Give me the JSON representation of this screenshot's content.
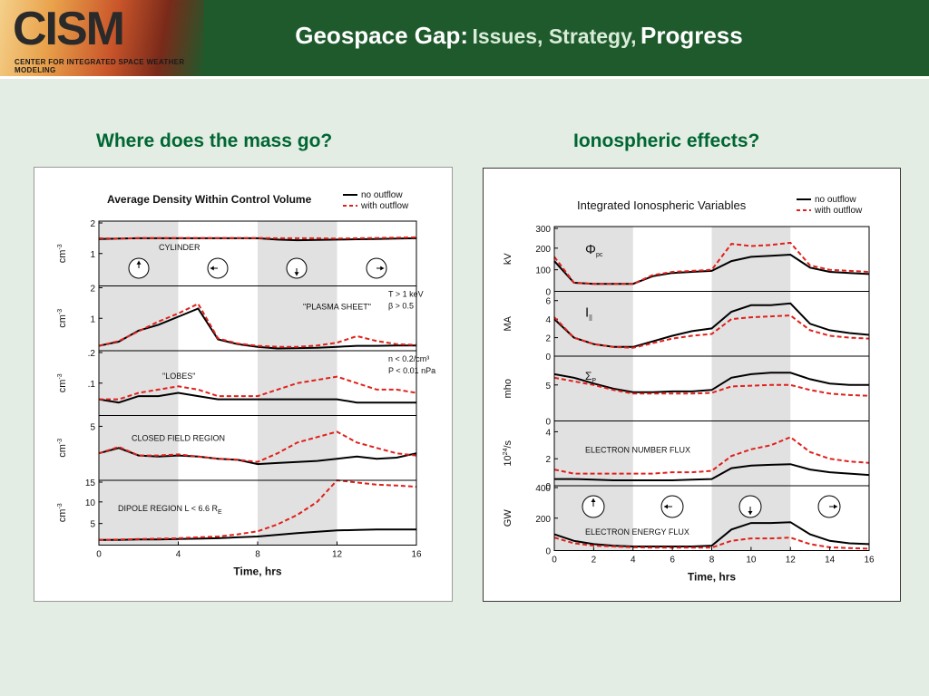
{
  "header": {
    "logo": "CISM",
    "logo_sub": "CENTER FOR INTEGRATED SPACE WEATHER MODELING",
    "title_main": "Geospace Gap:",
    "title_mid": "Issues, Strategy,",
    "title_end": "Progress"
  },
  "questions": {
    "left": "Where does the mass go?",
    "right": "Ionospheric effects?"
  },
  "colors": {
    "no_outflow": "#000000",
    "with_outflow": "#e0201b",
    "shade": "#e1e1e1",
    "header_bg": "#1e5a2c",
    "question": "#006633"
  },
  "chart_data": [
    {
      "type": "line",
      "title": "Average Density Within Control Volume",
      "xlabel": "Time, hrs",
      "xticks": [
        "0",
        "4",
        "8",
        "12",
        "16"
      ],
      "xlim": [
        0,
        16
      ],
      "legend": {
        "position": "top-right",
        "entries": [
          "no outflow",
          "with outflow"
        ]
      },
      "shaded_intervals": [
        [
          0,
          4
        ],
        [
          8,
          12
        ]
      ],
      "x": [
        0,
        1,
        2,
        3,
        4,
        5,
        6,
        7,
        8,
        9,
        10,
        11,
        12,
        13,
        14,
        15,
        16
      ],
      "panels": [
        {
          "label": "CYLINDER",
          "ylabel": "cm",
          "ylabel_sup": "-3",
          "yticks": [
            "2",
            "1"
          ],
          "ylim": [
            0,
            2
          ],
          "series": [
            {
              "name": "no outflow",
              "values": [
                1.45,
                1.46,
                1.47,
                1.47,
                1.47,
                1.47,
                1.47,
                1.47,
                1.47,
                1.43,
                1.41,
                1.42,
                1.43,
                1.44,
                1.45,
                1.46,
                1.47
              ]
            },
            {
              "name": "with outflow",
              "values": [
                1.47,
                1.46,
                1.48,
                1.48,
                1.48,
                1.48,
                1.48,
                1.48,
                1.48,
                1.47,
                1.47,
                1.47,
                1.46,
                1.47,
                1.48,
                1.49,
                1.5
              ]
            }
          ]
        },
        {
          "label": "\"PLASMA SHEET\"",
          "ylabel": "cm",
          "ylabel_sup": "-3",
          "yticks": [
            "2",
            "1"
          ],
          "ylim": [
            0,
            2
          ],
          "note": [
            "T > 1 keV",
            "β > 0.5"
          ],
          "series": [
            {
              "name": "no outflow",
              "values": [
                0.15,
                0.28,
                0.62,
                0.8,
                1.05,
                1.3,
                0.35,
                0.2,
                0.12,
                0.07,
                0.08,
                0.09,
                0.12,
                0.15,
                0.15,
                0.16,
                0.16
              ]
            },
            {
              "name": "with outflow",
              "values": [
                0.15,
                0.3,
                0.6,
                0.9,
                1.15,
                1.45,
                0.38,
                0.22,
                0.15,
                0.12,
                0.12,
                0.16,
                0.25,
                0.45,
                0.3,
                0.2,
                0.18
              ]
            }
          ]
        },
        {
          "label": "\"LOBES\"",
          "ylabel": "cm",
          "ylabel_sup": "-3",
          "yticks": [
            ".2",
            ".1"
          ],
          "ylim": [
            0,
            0.2
          ],
          "note": [
            "n < 0.2/cm³",
            "P < 0.01 nPa"
          ],
          "series": [
            {
              "name": "no outflow",
              "values": [
                0.05,
                0.04,
                0.06,
                0.06,
                0.07,
                0.06,
                0.05,
                0.05,
                0.05,
                0.05,
                0.05,
                0.05,
                0.05,
                0.04,
                0.04,
                0.04,
                0.04
              ]
            },
            {
              "name": "with outflow",
              "values": [
                0.05,
                0.05,
                0.07,
                0.08,
                0.09,
                0.08,
                0.06,
                0.06,
                0.06,
                0.08,
                0.1,
                0.11,
                0.12,
                0.1,
                0.08,
                0.08,
                0.07
              ]
            }
          ]
        },
        {
          "label": "CLOSED FIELD REGION",
          "ylabel": "cm",
          "ylabel_sup": "-3",
          "yticks": [
            "5"
          ],
          "ylim": [
            0,
            6
          ],
          "series": [
            {
              "name": "no outflow",
              "values": [
                2.5,
                3.0,
                2.3,
                2.2,
                2.3,
                2.2,
                2.0,
                1.9,
                1.5,
                1.6,
                1.7,
                1.8,
                2.0,
                2.2,
                2.0,
                2.1,
                2.5
              ]
            },
            {
              "name": "with outflow",
              "values": [
                2.5,
                3.1,
                2.3,
                2.3,
                2.4,
                2.2,
                2.0,
                1.9,
                1.7,
                2.5,
                3.5,
                4.0,
                4.5,
                3.5,
                3.0,
                2.5,
                2.3
              ]
            }
          ]
        },
        {
          "label": "DIPOLE REGION   L < 6.6 R",
          "label_sub": "E",
          "ylabel": "cm",
          "ylabel_sup": "-3",
          "yticks": [
            "15",
            "10",
            "5"
          ],
          "ylim": [
            0,
            15
          ],
          "series": [
            {
              "name": "no outflow",
              "values": [
                1.2,
                1.2,
                1.3,
                1.3,
                1.4,
                1.5,
                1.6,
                1.8,
                2.0,
                2.4,
                2.8,
                3.1,
                3.4,
                3.5,
                3.6,
                3.6,
                3.6
              ]
            },
            {
              "name": "with outflow",
              "values": [
                1.2,
                1.3,
                1.4,
                1.5,
                1.6,
                1.8,
                2.0,
                2.5,
                3.2,
                4.8,
                7.0,
                10.0,
                15.0,
                14.5,
                14.0,
                13.8,
                13.5
              ]
            }
          ]
        }
      ]
    },
    {
      "type": "line",
      "title": "Integrated Ionospheric Variables",
      "xlabel": "Time, hrs",
      "xticks": [
        "0",
        "2",
        "4",
        "6",
        "8",
        "10",
        "12",
        "14",
        "16"
      ],
      "xlim": [
        0,
        16
      ],
      "legend": {
        "position": "top-right",
        "entries": [
          "no outflow",
          "with outflow"
        ]
      },
      "shaded_intervals": [
        [
          0,
          4
        ],
        [
          8,
          12
        ]
      ],
      "x": [
        0,
        1,
        2,
        3,
        4,
        5,
        6,
        7,
        8,
        9,
        10,
        11,
        12,
        13,
        14,
        15,
        16
      ],
      "panels": [
        {
          "label": "Φ",
          "label_sub": "pc",
          "ylabel": "kV",
          "yticks": [
            "300",
            "200",
            "100",
            "0"
          ],
          "ylim": [
            0,
            300
          ],
          "series": [
            {
              "name": "no outflow",
              "values": [
                140,
                40,
                35,
                35,
                35,
                70,
                85,
                90,
                95,
                140,
                160,
                165,
                170,
                110,
                90,
                85,
                80
              ]
            },
            {
              "name": "with outflow",
              "values": [
                160,
                40,
                35,
                35,
                35,
                75,
                90,
                95,
                100,
                220,
                210,
                215,
                225,
                120,
                100,
                95,
                90
              ]
            }
          ]
        },
        {
          "label": "I",
          "label_sub": "||",
          "ylabel": "MA",
          "yticks": [
            "6",
            "4",
            "2",
            "0"
          ],
          "ylim": [
            0,
            7
          ],
          "series": [
            {
              "name": "no outflow",
              "values": [
                4.0,
                2.0,
                1.3,
                1.0,
                1.0,
                1.6,
                2.2,
                2.7,
                3.0,
                4.8,
                5.5,
                5.5,
                5.7,
                3.5,
                2.8,
                2.5,
                2.3
              ]
            },
            {
              "name": "with outflow",
              "values": [
                4.2,
                2.0,
                1.3,
                1.0,
                0.9,
                1.4,
                1.9,
                2.2,
                2.4,
                4.0,
                4.2,
                4.3,
                4.4,
                2.8,
                2.2,
                2.0,
                1.9
              ]
            }
          ]
        },
        {
          "label": "Σ",
          "label_sub": "P",
          "ylabel": "mho",
          "yticks": [
            "5",
            "0"
          ],
          "ylim": [
            0,
            9
          ],
          "series": [
            {
              "name": "no outflow",
              "values": [
                6.5,
                6.0,
                5.2,
                4.5,
                4.0,
                4.0,
                4.1,
                4.1,
                4.3,
                6.0,
                6.5,
                6.7,
                6.7,
                5.8,
                5.2,
                5.0,
                5.0
              ]
            },
            {
              "name": "with outflow",
              "values": [
                6.0,
                5.5,
                5.0,
                4.3,
                3.8,
                3.8,
                3.8,
                3.8,
                3.9,
                4.8,
                4.9,
                5.0,
                5.0,
                4.3,
                3.8,
                3.6,
                3.5
              ]
            }
          ]
        },
        {
          "label": "ELECTRON NUMBER FLUX",
          "ylabel": "10",
          "ylabel_sup": "24",
          "ylabel_tail": "/s",
          "yticks": [
            "4",
            "2",
            "0"
          ],
          "ylim": [
            0,
            4.8
          ],
          "series": [
            {
              "name": "no outflow",
              "values": [
                0.5,
                0.5,
                0.45,
                0.4,
                0.4,
                0.4,
                0.4,
                0.45,
                0.5,
                1.3,
                1.5,
                1.55,
                1.6,
                1.2,
                1.0,
                0.9,
                0.8
              ]
            },
            {
              "name": "with outflow",
              "values": [
                1.2,
                0.9,
                0.9,
                0.9,
                0.9,
                0.9,
                1.0,
                1.0,
                1.1,
                2.2,
                2.7,
                3.0,
                3.6,
                2.5,
                2.0,
                1.8,
                1.7
              ]
            }
          ]
        },
        {
          "label": "ELECTRON ENERGY FLUX",
          "ylabel": "GW",
          "yticks": [
            "400",
            "200",
            "0"
          ],
          "ylim": [
            0,
            400
          ],
          "series": [
            {
              "name": "no outflow",
              "values": [
                100,
                60,
                40,
                30,
                25,
                25,
                25,
                25,
                30,
                130,
                170,
                170,
                175,
                100,
                60,
                45,
                40
              ]
            },
            {
              "name": "with outflow",
              "values": [
                80,
                45,
                30,
                25,
                20,
                18,
                18,
                18,
                18,
                60,
                75,
                75,
                80,
                40,
                20,
                15,
                12
              ]
            }
          ]
        }
      ]
    }
  ]
}
